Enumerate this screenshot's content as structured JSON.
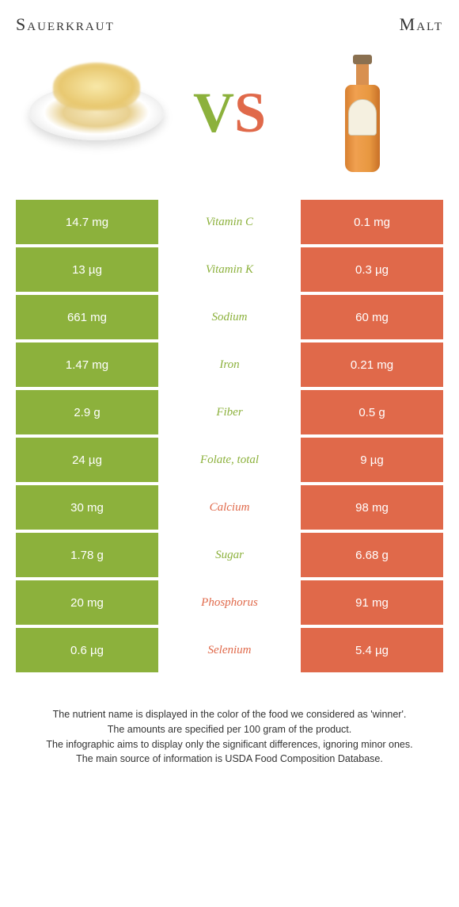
{
  "header": {
    "left": "Sauerkraut",
    "right": "Malt"
  },
  "vs": {
    "v": "V",
    "s": "S"
  },
  "colors": {
    "left": "#8cb13c",
    "right": "#e0694a",
    "vs_v": "#8cb13c",
    "vs_s": "#e0694a"
  },
  "rows": [
    {
      "left": "14.7 mg",
      "label": "Vitamin C",
      "right": "0.1 mg",
      "winner": "left"
    },
    {
      "left": "13 µg",
      "label": "Vitamin K",
      "right": "0.3 µg",
      "winner": "left"
    },
    {
      "left": "661 mg",
      "label": "Sodium",
      "right": "60 mg",
      "winner": "left"
    },
    {
      "left": "1.47 mg",
      "label": "Iron",
      "right": "0.21 mg",
      "winner": "left"
    },
    {
      "left": "2.9 g",
      "label": "Fiber",
      "right": "0.5 g",
      "winner": "left"
    },
    {
      "left": "24 µg",
      "label": "Folate, total",
      "right": "9 µg",
      "winner": "left"
    },
    {
      "left": "30 mg",
      "label": "Calcium",
      "right": "98 mg",
      "winner": "right"
    },
    {
      "left": "1.78 g",
      "label": "Sugar",
      "right": "6.68 g",
      "winner": "left"
    },
    {
      "left": "20 mg",
      "label": "Phosphorus",
      "right": "91 mg",
      "winner": "right"
    },
    {
      "left": "0.6 µg",
      "label": "Selenium",
      "right": "5.4 µg",
      "winner": "right"
    }
  ],
  "footer": {
    "l1": "The nutrient name is displayed in the color of the food we considered as 'winner'.",
    "l2": "The amounts are specified per 100 gram of the product.",
    "l3": "The infographic aims to display only the significant differences, ignoring minor ones.",
    "l4": "The main source of information is USDA Food Composition Database."
  }
}
